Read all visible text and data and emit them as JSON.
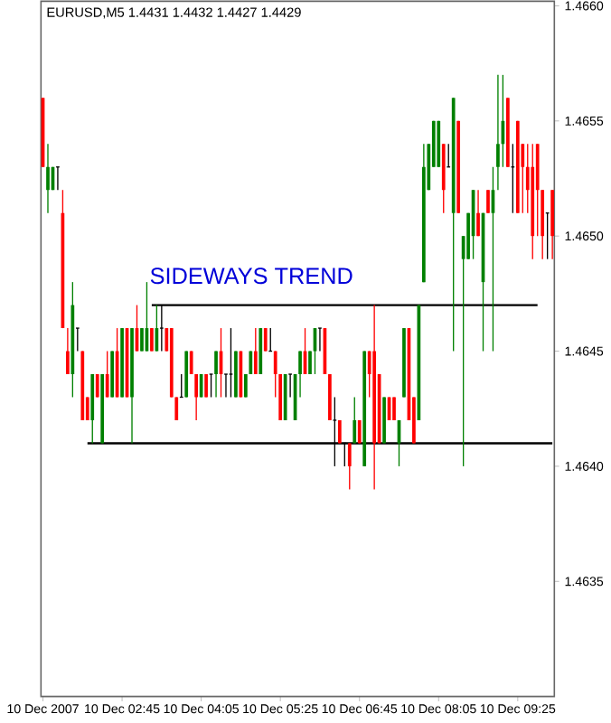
{
  "chart_data": {
    "type": "candlestick",
    "title": "EURUSD,M5 1.4431 1.4432 1.4427 1.4429",
    "annotations": [
      "SIDEWAYS TREND"
    ],
    "categories": [
      "10 Dec 2007",
      null,
      null,
      null,
      null,
      null,
      null,
      null,
      null,
      null,
      null,
      null,
      null,
      null,
      null,
      null,
      "10 Dec 02:45",
      null,
      null,
      null,
      null,
      null,
      null,
      null,
      null,
      null,
      null,
      null,
      null,
      null,
      null,
      null,
      "10 Dec 04:05",
      null,
      null,
      null,
      null,
      null,
      null,
      null,
      null,
      null,
      null,
      null,
      null,
      null,
      null,
      null,
      "10 Dec 05:25",
      null,
      null,
      null,
      null,
      null,
      null,
      null,
      null,
      null,
      null,
      null,
      null,
      null,
      null,
      null,
      "10 Dec 06:45",
      null,
      null,
      null,
      null,
      null,
      null,
      null,
      null,
      null,
      null,
      null,
      null,
      null,
      null,
      null,
      "10 Dec 08:05",
      null,
      null,
      null,
      null,
      null,
      null,
      null,
      null,
      null,
      null,
      null,
      null,
      null,
      null,
      null,
      "10 Dec 09:25",
      null,
      null,
      null,
      null,
      null,
      null,
      null
    ],
    "ohlc": [
      [
        1.4656,
        1.4656,
        1.4653,
        1.4653
      ],
      [
        1.4652,
        1.4654,
        1.4651,
        1.4653
      ],
      [
        1.4652,
        1.4653,
        1.4652,
        1.4653
      ],
      [
        1.4653,
        1.4653,
        1.4652,
        1.4653
      ],
      [
        1.4651,
        1.4652,
        1.4646,
        1.4646
      ],
      [
        1.4645,
        1.4646,
        1.4644,
        1.4644
      ],
      [
        1.4644,
        1.4648,
        1.4643,
        1.4647
      ],
      [
        1.4646,
        1.4646,
        1.4645,
        1.4646
      ],
      [
        1.4645,
        1.4645,
        1.4642,
        1.4642
      ],
      [
        1.4643,
        1.4643,
        1.4642,
        1.4642
      ],
      [
        1.4642,
        1.4644,
        1.4641,
        1.4644
      ],
      [
        1.4644,
        1.4644,
        1.4643,
        1.4643
      ],
      [
        1.4641,
        1.4644,
        1.4641,
        1.4644
      ],
      [
        1.4644,
        1.4645,
        1.4643,
        1.4643
      ],
      [
        1.4643,
        1.4645,
        1.4643,
        1.4645
      ],
      [
        1.4645,
        1.4646,
        1.4643,
        1.4643
      ],
      [
        1.4643,
        1.4646,
        1.4643,
        1.4646
      ],
      [
        1.4646,
        1.4646,
        1.4643,
        1.4643
      ],
      [
        1.4643,
        1.4646,
        1.4641,
        1.4646
      ],
      [
        1.4646,
        1.4647,
        1.4645,
        1.4645
      ],
      [
        1.4645,
        1.4646,
        1.4645,
        1.4646
      ],
      [
        1.4645,
        1.4648,
        1.4645,
        1.4646
      ],
      [
        1.4646,
        1.4646,
        1.4645,
        1.4645
      ],
      [
        1.4645,
        1.4647,
        1.4645,
        1.4646
      ],
      [
        1.4646,
        1.4647,
        1.4645,
        1.4646
      ],
      [
        1.4646,
        1.4646,
        1.4645,
        1.4645
      ],
      [
        1.4646,
        1.4646,
        1.4643,
        1.4643
      ],
      [
        1.4643,
        1.4643,
        1.4642,
        1.4642
      ],
      [
        1.4643,
        1.4644,
        1.4643,
        1.4643
      ],
      [
        1.4643,
        1.4645,
        1.4643,
        1.4645
      ],
      [
        1.4645,
        1.4645,
        1.4644,
        1.4644
      ],
      [
        1.4644,
        1.4644,
        1.4642,
        1.4643
      ],
      [
        1.4643,
        1.4644,
        1.4643,
        1.4644
      ],
      [
        1.4644,
        1.4644,
        1.4643,
        1.4643
      ],
      [
        1.4644,
        1.4644,
        1.4643,
        1.4644
      ],
      [
        1.4644,
        1.4645,
        1.4643,
        1.4645
      ],
      [
        1.4645,
        1.4646,
        1.4643,
        1.4644
      ],
      [
        1.4644,
        1.4644,
        1.4643,
        1.4644
      ],
      [
        1.4644,
        1.4646,
        1.4643,
        1.4644
      ],
      [
        1.4643,
        1.4645,
        1.4643,
        1.4645
      ],
      [
        1.4645,
        1.4645,
        1.4643,
        1.4643
      ],
      [
        1.4643,
        1.4644,
        1.4643,
        1.4644
      ],
      [
        1.4644,
        1.4645,
        1.4644,
        1.4645
      ],
      [
        1.4645,
        1.4646,
        1.4644,
        1.4644
      ],
      [
        1.4644,
        1.4646,
        1.4644,
        1.4646
      ],
      [
        1.4646,
        1.4646,
        1.4645,
        1.4645
      ],
      [
        1.4645,
        1.4646,
        1.4645,
        1.4645
      ],
      [
        1.4645,
        1.4645,
        1.4643,
        1.4644
      ],
      [
        1.4644,
        1.4644,
        1.4642,
        1.4642
      ],
      [
        1.4642,
        1.4644,
        1.4642,
        1.4644
      ],
      [
        1.4644,
        1.4644,
        1.4643,
        1.4644
      ],
      [
        1.4642,
        1.4644,
        1.4642,
        1.4644
      ],
      [
        1.4644,
        1.4645,
        1.4643,
        1.4645
      ],
      [
        1.4645,
        1.4646,
        1.4644,
        1.4644
      ],
      [
        1.4644,
        1.4645,
        1.4644,
        1.4645
      ],
      [
        1.4645,
        1.4646,
        1.4644,
        1.4646
      ],
      [
        1.4646,
        1.4646,
        1.4645,
        1.4646
      ],
      [
        1.4646,
        1.4646,
        1.4644,
        1.4644
      ],
      [
        1.4644,
        1.4644,
        1.4642,
        1.4642
      ],
      [
        1.4642,
        1.4643,
        1.464,
        1.4642
      ],
      [
        1.4642,
        1.4642,
        1.4641,
        1.4641
      ],
      [
        1.4641,
        1.4641,
        1.464,
        1.4641
      ],
      [
        1.4641,
        1.4641,
        1.4639,
        1.464
      ],
      [
        1.4641,
        1.4643,
        1.4641,
        1.4642
      ],
      [
        1.4642,
        1.4642,
        1.4641,
        1.4641
      ],
      [
        1.464,
        1.4645,
        1.464,
        1.4645
      ],
      [
        1.4645,
        1.4645,
        1.4643,
        1.4644
      ],
      [
        1.4645,
        1.4647,
        1.4639,
        1.4641
      ],
      [
        1.4644,
        1.4644,
        1.4641,
        1.4641
      ],
      [
        1.4641,
        1.4643,
        1.4641,
        1.4643
      ],
      [
        1.4643,
        1.4643,
        1.4642,
        1.4642
      ],
      [
        1.4643,
        1.4643,
        1.4642,
        1.4642
      ],
      [
        1.4641,
        1.4642,
        1.464,
        1.4642
      ],
      [
        1.4643,
        1.4646,
        1.4643,
        1.4646
      ],
      [
        1.4646,
        1.4646,
        1.4642,
        1.4642
      ],
      [
        1.4643,
        1.4643,
        1.4641,
        1.4641
      ],
      [
        1.4642,
        1.4647,
        1.4642,
        1.4647
      ],
      [
        1.4648,
        1.4654,
        1.4648,
        1.4653
      ],
      [
        1.4652,
        1.4654,
        1.4652,
        1.4654
      ],
      [
        1.4653,
        1.4655,
        1.4653,
        1.4655
      ],
      [
        1.4653,
        1.4655,
        1.4653,
        1.4655
      ],
      [
        1.4654,
        1.4654,
        1.4651,
        1.4652
      ],
      [
        1.4653,
        1.4654,
        1.4653,
        1.4653
      ],
      [
        1.4651,
        1.4656,
        1.4645,
        1.4656
      ],
      [
        1.4655,
        1.4655,
        1.4651,
        1.4651
      ],
      [
        1.4649,
        1.465,
        1.464,
        1.465
      ],
      [
        1.4649,
        1.4651,
        1.4649,
        1.4651
      ],
      [
        1.465,
        1.4652,
        1.4649,
        1.4652
      ],
      [
        1.4651,
        1.4652,
        1.465,
        1.465
      ],
      [
        1.4648,
        1.4651,
        1.4645,
        1.4651
      ],
      [
        1.4652,
        1.4652,
        1.4651,
        1.4651
      ],
      [
        1.4651,
        1.4653,
        1.4645,
        1.4652
      ],
      [
        1.4653,
        1.4657,
        1.4652,
        1.4654
      ],
      [
        1.4654,
        1.4657,
        1.4653,
        1.4655
      ],
      [
        1.4656,
        1.4656,
        1.4653,
        1.4653
      ],
      [
        1.4653,
        1.4654,
        1.4651,
        1.4653
      ],
      [
        1.4655,
        1.4655,
        1.4651,
        1.4651
      ],
      [
        1.4654,
        1.4654,
        1.4651,
        1.4653
      ],
      [
        1.4653,
        1.4654,
        1.4651,
        1.4652
      ],
      [
        1.4653,
        1.4654,
        1.4649,
        1.465
      ],
      [
        1.4654,
        1.4654,
        1.465,
        1.4652
      ],
      [
        1.4652,
        1.4652,
        1.4649,
        1.465
      ],
      [
        1.4651,
        1.4651,
        1.4649,
        1.4651
      ],
      [
        1.4652,
        1.4652,
        1.4649,
        1.465
      ]
    ],
    "series": [
      {
        "type": "line",
        "color": "#000000",
        "values": [
          null,
          null,
          null,
          null,
          null,
          null,
          null,
          null,
          null,
          null,
          null,
          null,
          null,
          null,
          null,
          null,
          null,
          null,
          null,
          null,
          null,
          null,
          1.4647,
          1.4647,
          1.4647,
          1.4647,
          1.4647,
          1.4647,
          1.4647,
          1.4647,
          1.4647,
          1.4647,
          1.4647,
          1.4647,
          1.4647,
          1.4647,
          1.4647,
          1.4647,
          1.4647,
          1.4647,
          1.4647,
          1.4647,
          1.4647,
          1.4647,
          1.4647,
          1.4647,
          1.4647,
          1.4647,
          1.4647,
          1.4647,
          1.4647,
          1.4647,
          1.4647,
          1.4647,
          1.4647,
          1.4647,
          1.4647,
          1.4647,
          1.4647,
          1.4647,
          1.4647,
          1.4647,
          1.4647,
          1.4647,
          1.4647,
          1.4647,
          1.4647,
          1.4647,
          1.4647,
          1.4647,
          1.4647,
          1.4647,
          1.4647,
          1.4647,
          1.4647,
          1.4647,
          1.4647,
          1.4647,
          1.4647,
          1.4647,
          1.4647,
          1.4647,
          1.4647,
          1.4647,
          1.4647,
          1.4647,
          1.4647,
          1.4647,
          1.4647,
          1.4647,
          1.4647,
          1.4647,
          1.4647,
          1.4647,
          1.4647,
          1.4647,
          1.4647,
          1.4647,
          1.4647,
          1.4647,
          1.4647,
          null,
          null,
          null
        ]
      },
      {
        "type": "line",
        "color": "#000000",
        "values": [
          null,
          null,
          null,
          null,
          null,
          null,
          null,
          null,
          null,
          1.4641,
          1.4641,
          1.4641,
          1.4641,
          1.4641,
          1.4641,
          1.4641,
          1.4641,
          1.4641,
          1.4641,
          1.4641,
          1.4641,
          1.4641,
          1.4641,
          1.4641,
          1.4641,
          1.4641,
          1.4641,
          1.4641,
          1.4641,
          1.4641,
          1.4641,
          1.4641,
          1.4641,
          1.4641,
          1.4641,
          1.4641,
          1.4641,
          1.4641,
          1.4641,
          1.4641,
          1.4641,
          1.4641,
          1.4641,
          1.4641,
          1.4641,
          1.4641,
          1.4641,
          1.4641,
          1.4641,
          1.4641,
          1.4641,
          1.4641,
          1.4641,
          1.4641,
          1.4641,
          1.4641,
          1.4641,
          1.4641,
          1.4641,
          1.4641,
          1.4641,
          1.4641,
          1.4641,
          1.4641,
          1.4641,
          1.4641,
          1.4641,
          1.4641,
          1.4641,
          1.4641,
          1.4641,
          1.4641,
          1.4641,
          1.4641,
          1.4641,
          1.4641,
          1.4641,
          1.4641,
          1.4641,
          1.4641,
          1.4641,
          1.4641,
          1.4641,
          1.4641,
          1.4641,
          1.4641,
          1.4641,
          1.4641,
          1.4641,
          1.4641,
          1.4641,
          1.4641,
          1.4641,
          1.4641,
          1.4641,
          1.4641,
          1.4641,
          1.4641,
          1.4641,
          1.4641,
          1.4641,
          1.4641,
          1.4641,
          1.4641
        ]
      }
    ],
    "ylim": [
      1.463,
      1.46602
    ],
    "yticks": [
      {
        "value": 1.4635,
        "label": "1.4635"
      },
      {
        "value": 1.464,
        "label": "1.4640"
      },
      {
        "value": 1.4645,
        "label": "1.4645"
      },
      {
        "value": 1.465,
        "label": "1.4650"
      },
      {
        "value": 1.4655,
        "label": "1.4655"
      },
      {
        "value": 1.466,
        "label": "1.4660"
      }
    ],
    "grid": false
  }
}
